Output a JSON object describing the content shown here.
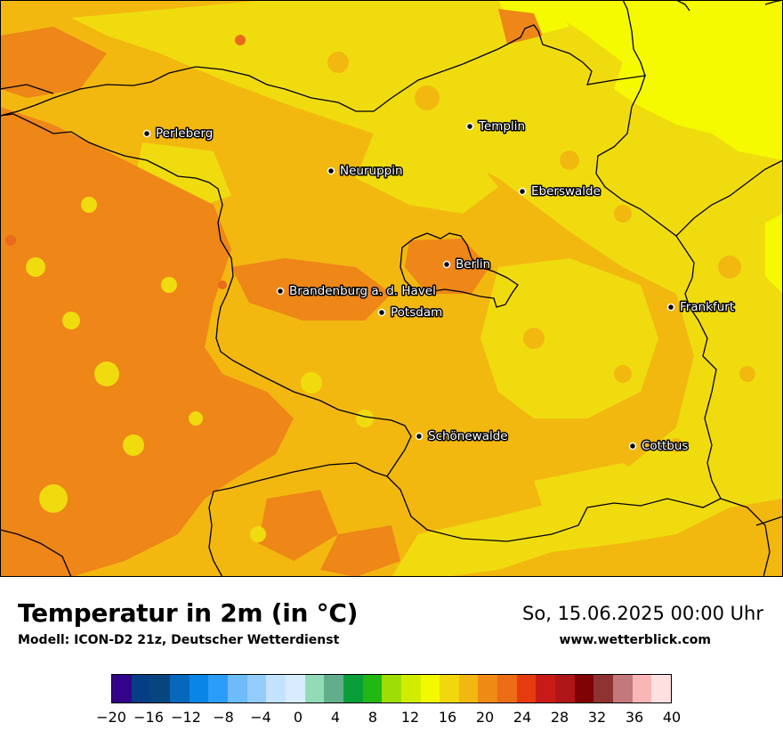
{
  "map": {
    "cities": [
      {
        "name": "Perleberg"
      },
      {
        "name": "Templin"
      },
      {
        "name": "Neuruppin"
      },
      {
        "name": "Eberswalde"
      },
      {
        "name": "Berlin"
      },
      {
        "name": "Brandenburg a. d. Havel"
      },
      {
        "name": "Potsdam"
      },
      {
        "name": "Frankfurt"
      },
      {
        "name": "Schönewalde"
      },
      {
        "name": "Cottbus"
      }
    ],
    "field_colors": {
      "t16_18": "#f0dc0e",
      "t18_20": "#f2b810",
      "t20_22": "#ee8618",
      "t14_16": "#f5fa00",
      "t22_24": "#e86a1c"
    }
  },
  "header": {
    "title": "Temperatur in 2m (in °C)",
    "model": "Modell: ICON-D2 21z, Deutscher Wetterdienst",
    "datetime": "So, 15.06.2025 00:00 Uhr",
    "website": "www.wetterblick.com"
  },
  "legend": {
    "ticks": [
      "−20",
      "−16",
      "−12",
      "−8",
      "−4",
      "0",
      "4",
      "8",
      "12",
      "16",
      "20",
      "24",
      "28",
      "32",
      "36",
      "40"
    ],
    "colors": [
      "#33048a",
      "#053e84",
      "#06457f",
      "#0668bb",
      "#0985e8",
      "#2a9cf9",
      "#6ebbfa",
      "#94ccfb",
      "#c3e2fd",
      "#d9ecfe",
      "#91dcb6",
      "#62ae8c",
      "#0a9e3a",
      "#21b814",
      "#9ede06",
      "#d2ec00",
      "#f3fa00",
      "#f1d70e",
      "#f2b710",
      "#ef8a14",
      "#ed6c16",
      "#e63b0e",
      "#c81a16",
      "#b01618",
      "#7f0205",
      "#8e3232",
      "#c3797b",
      "#f9b6b7",
      "#fee0e1"
    ]
  }
}
